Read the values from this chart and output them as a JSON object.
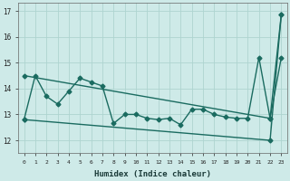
{
  "xlabel": "Humidex (Indice chaleur)",
  "ylabel": "",
  "background_color": "#ceeae8",
  "grid_color": "#aed4d0",
  "line_color": "#1a6b60",
  "xlim": [
    -0.5,
    23.5
  ],
  "ylim": [
    11.5,
    17.3
  ],
  "yticks": [
    12,
    13,
    14,
    15,
    16,
    17
  ],
  "xticks": [
    0,
    1,
    2,
    3,
    4,
    5,
    6,
    7,
    8,
    9,
    10,
    11,
    12,
    13,
    14,
    15,
    16,
    17,
    18,
    19,
    20,
    21,
    22,
    23
  ],
  "series1_x": [
    0,
    1,
    2,
    3,
    4,
    5,
    6,
    7,
    8,
    9,
    10,
    11,
    12,
    13,
    14,
    15,
    16,
    17,
    18,
    19,
    20,
    21,
    22,
    23
  ],
  "series1_y": [
    12.8,
    14.5,
    13.7,
    13.4,
    13.9,
    14.4,
    14.25,
    14.1,
    12.65,
    13.0,
    13.0,
    12.85,
    12.8,
    12.85,
    12.6,
    13.2,
    13.2,
    13.0,
    12.9,
    12.85,
    12.85,
    15.2,
    12.85,
    16.85
  ],
  "series2_x": [
    0,
    22,
    23
  ],
  "series2_y": [
    14.5,
    12.85,
    15.2
  ],
  "series3_x": [
    0,
    22,
    23
  ],
  "series3_y": [
    12.8,
    12.0,
    16.85
  ],
  "marker": "D",
  "marker_size": 2.5,
  "line_width": 1.0
}
